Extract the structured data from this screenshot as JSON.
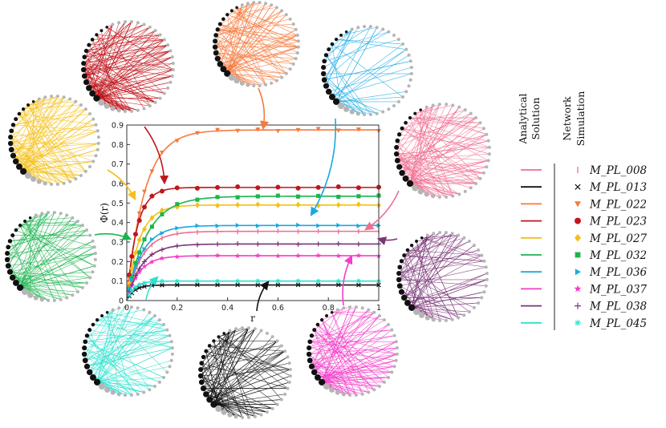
{
  "chart_data": {
    "type": "line",
    "title": "",
    "xlabel": "r",
    "ylabel": "Φ(r)",
    "xlim": [
      0,
      1
    ],
    "ylim": [
      0,
      0.9
    ],
    "xticks": [
      "0",
      "0.2",
      "0.4",
      "0.6",
      "0.8",
      "1"
    ],
    "yticks": [
      "0",
      "0.1",
      "0.2",
      "0.3",
      "0.4",
      "0.5",
      "0.6",
      "0.7",
      "0.8",
      "0.9"
    ],
    "legend": {
      "analytical_header": [
        "Analytical",
        "Solution"
      ],
      "simulation_header": [
        "Network",
        "Simulation"
      ],
      "placement": "right"
    },
    "series": [
      {
        "name": "M_PL_008",
        "color": "#f06e90",
        "marker": "vline",
        "plateau": 0.355,
        "tau": 0.06
      },
      {
        "name": "M_PL_013",
        "color": "#111111",
        "marker": "cross",
        "plateau": 0.08,
        "tau": 0.03
      },
      {
        "name": "M_PL_022",
        "color": "#f47a3d",
        "marker": "tri-down",
        "plateau": 0.875,
        "tau": 0.07
      },
      {
        "name": "M_PL_023",
        "color": "#c0161d",
        "marker": "circle",
        "plateau": 0.58,
        "tau": 0.04
      },
      {
        "name": "M_PL_027",
        "color": "#f4c018",
        "marker": "diamond",
        "plateau": 0.49,
        "tau": 0.05
      },
      {
        "name": "M_PL_032",
        "color": "#1db450",
        "marker": "square",
        "plateau": 0.535,
        "tau": 0.08
      },
      {
        "name": "M_PL_036",
        "color": "#1aa9e0",
        "marker": "tri-right",
        "plateau": 0.385,
        "tau": 0.06
      },
      {
        "name": "M_PL_037",
        "color": "#f23ec8",
        "marker": "star",
        "plateau": 0.23,
        "tau": 0.05
      },
      {
        "name": "M_PL_038",
        "color": "#7a3577",
        "marker": "plus",
        "plateau": 0.29,
        "tau": 0.06
      },
      {
        "name": "M_PL_045",
        "color": "#2fe0cf",
        "marker": "asterisk",
        "plateau": 0.1,
        "tau": 0.03
      }
    ],
    "network_insets": [
      {
        "series": "M_PL_023",
        "color": "#c0161d",
        "density": 140
      },
      {
        "series": "M_PL_022",
        "color": "#f47a3d",
        "density": 100
      },
      {
        "series": "M_PL_036",
        "color": "#1aa9e0",
        "density": 45
      },
      {
        "series": "M_PL_027",
        "color": "#f4c018",
        "density": 110
      },
      {
        "series": "M_PL_008",
        "color": "#f06e90",
        "density": 120
      },
      {
        "series": "M_PL_032",
        "color": "#1db450",
        "density": 90
      },
      {
        "series": "M_PL_038",
        "color": "#7a3577",
        "density": 90
      },
      {
        "series": "M_PL_045",
        "color": "#2fe0cf",
        "density": 90
      },
      {
        "series": "M_PL_013",
        "color": "#111111",
        "density": 110
      },
      {
        "series": "M_PL_037",
        "color": "#f23ec8",
        "density": 110
      }
    ]
  }
}
